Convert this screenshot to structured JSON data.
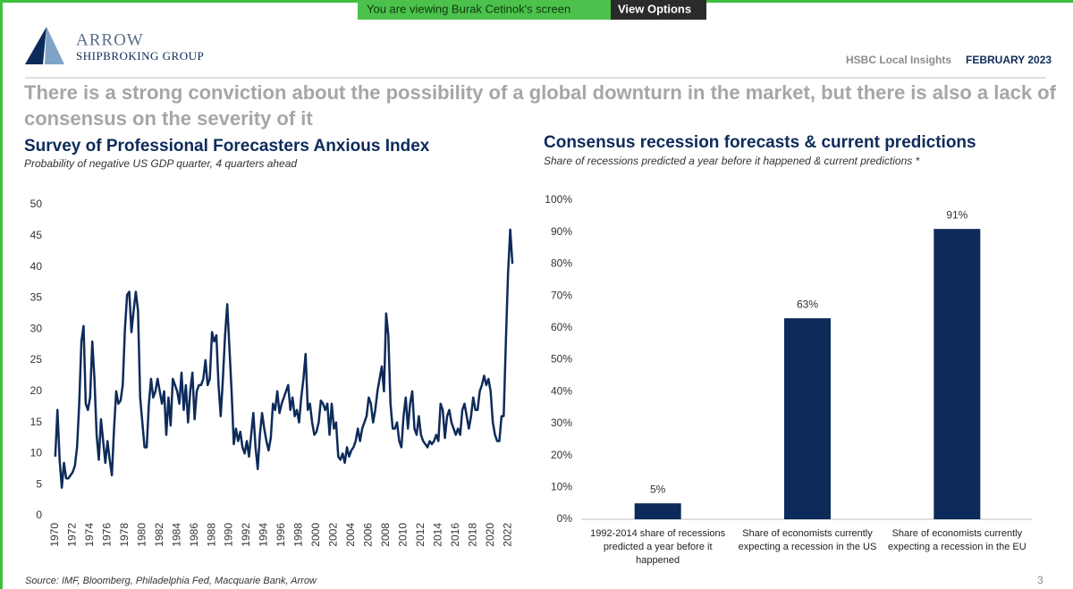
{
  "banner": {
    "text": "You are viewing Burak Cetinok's screen",
    "button": "View Options"
  },
  "header": {
    "logo_name": "ARROW",
    "logo_subtitle": "SHIPBROKING GROUP",
    "report": "HSBC Local Insights",
    "date": "FEBRUARY 2023"
  },
  "headline": "There is a strong conviction about the possibility of a global downturn in the market, but there is also a lack of consensus on the severity of it",
  "chart_data": [
    {
      "type": "line",
      "title": "Survey of Professional Forecasters Anxious Index",
      "subtitle": "Probability of negative US GDP quarter, 4 quarters ahead",
      "color": "#0d2b5a",
      "x": [
        1970,
        1970.25,
        1970.5,
        1970.75,
        1971,
        1971.25,
        1971.5,
        1971.75,
        1972,
        1972.25,
        1972.5,
        1972.75,
        1973,
        1973.25,
        1973.5,
        1973.75,
        1974,
        1974.25,
        1974.5,
        1974.75,
        1975,
        1975.25,
        1975.5,
        1975.75,
        1976,
        1976.25,
        1976.5,
        1976.75,
        1977,
        1977.25,
        1977.5,
        1977.75,
        1978,
        1978.25,
        1978.5,
        1978.75,
        1979,
        1979.25,
        1979.5,
        1979.75,
        1980,
        1980.25,
        1980.5,
        1980.75,
        1981,
        1981.25,
        1981.5,
        1981.75,
        1982,
        1982.25,
        1982.5,
        1982.75,
        1983,
        1983.25,
        1983.5,
        1983.75,
        1984,
        1984.25,
        1984.5,
        1984.75,
        1985,
        1985.25,
        1985.5,
        1985.75,
        1986,
        1986.25,
        1986.5,
        1986.75,
        1987,
        1987.25,
        1987.5,
        1987.75,
        1988,
        1988.25,
        1988.5,
        1988.75,
        1989,
        1989.25,
        1989.5,
        1989.75,
        1990,
        1990.25,
        1990.5,
        1990.75,
        1991,
        1991.25,
        1991.5,
        1991.75,
        1992,
        1992.25,
        1992.5,
        1992.75,
        1993,
        1993.25,
        1993.5,
        1993.75,
        1994,
        1994.25,
        1994.5,
        1994.75,
        1995,
        1995.25,
        1995.5,
        1995.75,
        1996,
        1996.25,
        1996.5,
        1996.75,
        1997,
        1997.25,
        1997.5,
        1997.75,
        1998,
        1998.25,
        1998.5,
        1998.75,
        1999,
        1999.25,
        1999.5,
        1999.75,
        2000,
        2000.25,
        2000.5,
        2000.75,
        2001,
        2001.25,
        2001.5,
        2001.75,
        2002,
        2002.25,
        2002.5,
        2002.75,
        2003,
        2003.25,
        2003.5,
        2003.75,
        2004,
        2004.25,
        2004.5,
        2004.75,
        2005,
        2005.25,
        2005.5,
        2005.75,
        2006,
        2006.25,
        2006.5,
        2006.75,
        2007,
        2007.25,
        2007.5,
        2007.75,
        2008,
        2008.25,
        2008.5,
        2008.75,
        2009,
        2009.25,
        2009.5,
        2009.75,
        2010,
        2010.25,
        2010.5,
        2010.75,
        2011,
        2011.25,
        2011.5,
        2011.75,
        2012,
        2012.25,
        2012.5,
        2012.75,
        2013,
        2013.25,
        2013.5,
        2013.75,
        2014,
        2014.25,
        2014.5,
        2014.75,
        2015,
        2015.25,
        2015.5,
        2015.75,
        2016,
        2016.25,
        2016.5,
        2016.75,
        2017,
        2017.25,
        2017.5,
        2017.75,
        2018,
        2018.25,
        2018.5,
        2018.75,
        2019,
        2019.25,
        2019.5,
        2019.75,
        2020,
        2020.25,
        2020.5,
        2020.75,
        2021,
        2021.25,
        2021.5,
        2021.75,
        2022,
        2022.25,
        2022.5
      ],
      "values": [
        9.5,
        17,
        9,
        4.5,
        8.5,
        6,
        6,
        6.5,
        7,
        8,
        11,
        18,
        28,
        30.5,
        18,
        17,
        19,
        28,
        22,
        13,
        9,
        15.5,
        12,
        8.5,
        12,
        9,
        6.5,
        14,
        20,
        18,
        18.5,
        21,
        30,
        35.5,
        36,
        29.5,
        33,
        36,
        33,
        19,
        15,
        11,
        11,
        18,
        22,
        19,
        20,
        22,
        20,
        18,
        20,
        13,
        19,
        14.5,
        22,
        21,
        20,
        18,
        23,
        17,
        21,
        15,
        20,
        23,
        15.5,
        20,
        21,
        21,
        22,
        25,
        21,
        22,
        29.5,
        28,
        29,
        21,
        16,
        22,
        29,
        34,
        27,
        20,
        11.5,
        14,
        12,
        13.5,
        11,
        10,
        12,
        9.5,
        13,
        16.5,
        11,
        7.5,
        13,
        16.5,
        14,
        12,
        10.5,
        12.5,
        18,
        17,
        20,
        16.5,
        18,
        19,
        20,
        21,
        17,
        19,
        16,
        17,
        15,
        19,
        22,
        26,
        17,
        18,
        15,
        13,
        13.5,
        15,
        18.5,
        18,
        17,
        18,
        13,
        18,
        14,
        15,
        9.5,
        9,
        10,
        8.5,
        11,
        9.5,
        10.5,
        11,
        12,
        14,
        12,
        14,
        15,
        16,
        19,
        18,
        15,
        17,
        20,
        22,
        24,
        20,
        32.5,
        29,
        18,
        14,
        14,
        15,
        12,
        11,
        16,
        19,
        14,
        18,
        20,
        14,
        13,
        16,
        13,
        12,
        11.5,
        11,
        12,
        11.5,
        12,
        13,
        12,
        18,
        17,
        12.5,
        16,
        17,
        15,
        14,
        13,
        14,
        13,
        17,
        18,
        16,
        14,
        16,
        19,
        17,
        17,
        20,
        21,
        22.5,
        21,
        22,
        20,
        15,
        13,
        12,
        12,
        16,
        16,
        28,
        39,
        46,
        40.5
      ],
      "xlim": [
        1969.3,
        2022.7
      ],
      "xticks": [
        1970,
        1972,
        1974,
        1976,
        1978,
        1980,
        1982,
        1984,
        1986,
        1988,
        1990,
        1992,
        1994,
        1996,
        1998,
        2000,
        2002,
        2004,
        2006,
        2008,
        2010,
        2012,
        2014,
        2016,
        2018,
        2020,
        2022
      ],
      "ylim": [
        0,
        50
      ],
      "yticks": [
        0,
        5,
        10,
        15,
        20,
        25,
        30,
        35,
        40,
        45,
        50
      ]
    },
    {
      "type": "bar",
      "title": "Consensus recession forecasts & current predictions",
      "subtitle": "Share of recessions predicted a year before it happened & current predictions *",
      "color": "#0d2b5a",
      "categories": [
        "1992-2014 share of recessions predicted a year before it happened",
        "Share of economists currently expecting a recession in the US",
        "Share of economists currently expecting a recession in the EU"
      ],
      "values": [
        5,
        63,
        91
      ],
      "value_labels": [
        "5%",
        "63%",
        "91%"
      ],
      "ylim": [
        0,
        100
      ],
      "yticks": [
        {
          "value": 0,
          "label": "0%"
        },
        {
          "value": 10,
          "label": "10%"
        },
        {
          "value": 20,
          "label": "20%"
        },
        {
          "value": 30,
          "label": "30%"
        },
        {
          "value": 40,
          "label": "40%"
        },
        {
          "value": 50,
          "label": "50%"
        },
        {
          "value": 60,
          "label": "60%"
        },
        {
          "value": 70,
          "label": "70%"
        },
        {
          "value": 80,
          "label": "80%"
        },
        {
          "value": 90,
          "label": "90%"
        },
        {
          "value": 100,
          "label": "100%"
        }
      ]
    }
  ],
  "source": "Source: IMF, Bloomberg, Philadelphia Fed, Macquarie Bank, Arrow",
  "page_number": "3"
}
